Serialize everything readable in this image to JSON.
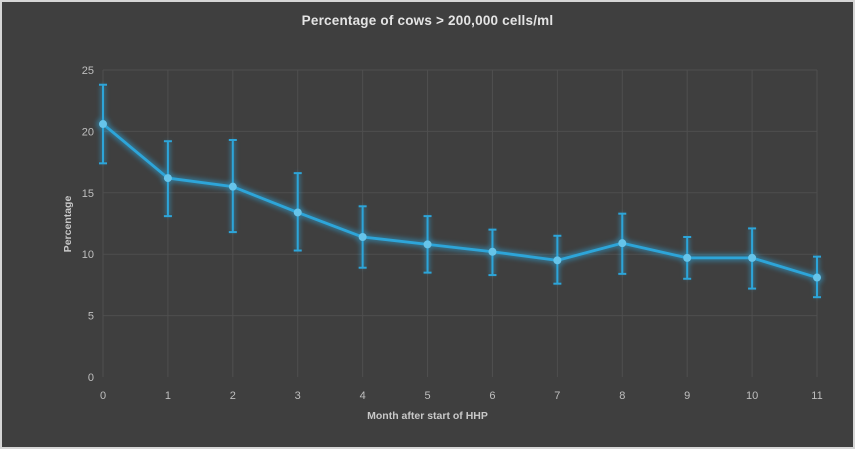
{
  "window": {
    "background": "#3F3F3F",
    "border_color": "#D6D6D6"
  },
  "chart_data": {
    "type": "line",
    "title": "Percentage of cows > 200,000 cells/ml",
    "xlabel": "Month after start of HHP",
    "ylabel": "Percentage",
    "x": [
      0,
      1,
      2,
      3,
      4,
      5,
      6,
      7,
      8,
      9,
      10,
      11
    ],
    "xtick_labels": [
      "0",
      "1",
      "2",
      "3",
      "4",
      "5",
      "6",
      "7",
      "8",
      "9",
      "10",
      "11"
    ],
    "yticks": [
      0,
      5,
      10,
      15,
      20,
      25
    ],
    "ylim": [
      0,
      25
    ],
    "x_range": [
      0,
      11
    ],
    "grid": true,
    "legend": "none",
    "series": [
      {
        "name": "Percentage of cows > 200,000 cells/ml",
        "marker": "circle",
        "line_style": "solid-with-glow",
        "values": [
          20.6,
          16.2,
          15.5,
          13.4,
          11.4,
          10.8,
          10.2,
          9.5,
          10.9,
          9.7,
          9.7,
          8.1
        ],
        "error_upper": [
          23.8,
          19.2,
          19.3,
          16.6,
          13.9,
          13.1,
          12.0,
          11.5,
          13.3,
          11.4,
          12.1,
          9.8
        ],
        "error_lower": [
          17.4,
          13.1,
          11.8,
          10.3,
          8.9,
          8.5,
          8.3,
          7.6,
          8.4,
          8.0,
          7.2,
          6.5
        ]
      }
    ],
    "colors": {
      "line": "#2DA5D9",
      "marker": "#66C4EA",
      "gridline": "#4F4F4F",
      "title_text": "#E4E4E4",
      "tick_text": "#BFBFBF",
      "axis_title_text": "#C8C8C8"
    }
  }
}
